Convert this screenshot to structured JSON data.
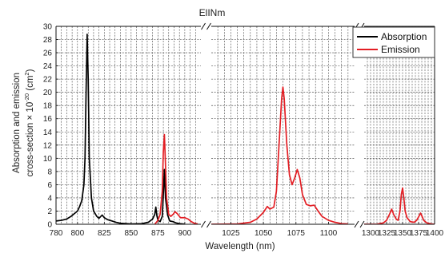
{
  "chart_data": {
    "type": "line",
    "title": "ElINm",
    "xlabel": "Wavelength (nm)",
    "ylabel_line1": "Absorption and emission",
    "ylabel_line2": "cross-section × 10",
    "ylabel_exp": "-20",
    "ylabel_unit_open": " (cm",
    "ylabel_unit_exp": "2",
    "ylabel_unit_close": ")",
    "ylim": [
      0,
      30
    ],
    "yticks": [
      0,
      2,
      4,
      6,
      8,
      10,
      12,
      14,
      16,
      18,
      20,
      22,
      24,
      26,
      28,
      30
    ],
    "grid": true,
    "broken_x_axis": true,
    "legend_position": "top-right",
    "segments": [
      {
        "xlim": [
          780,
          915
        ],
        "ticks": [
          780,
          800,
          825,
          850,
          875,
          900
        ]
      },
      {
        "xlim": [
          1010,
          1120
        ],
        "ticks": [
          1025,
          1050,
          1075,
          1100
        ]
      },
      {
        "xlim": [
          1290,
          1400
        ],
        "ticks": [
          1300,
          1325,
          1350,
          1375,
          1400
        ]
      }
    ],
    "series": [
      {
        "name": "Absorption",
        "color": "#000000",
        "points": [
          [
            780,
            0.5
          ],
          [
            785,
            0.6
          ],
          [
            790,
            0.8
          ],
          [
            794,
            1.2
          ],
          [
            797,
            1.6
          ],
          [
            800,
            2.0
          ],
          [
            802,
            2.7
          ],
          [
            804,
            3.6
          ],
          [
            806,
            6.0
          ],
          [
            807,
            10.0
          ],
          [
            808,
            20.0
          ],
          [
            809,
            28.8
          ],
          [
            810,
            22.0
          ],
          [
            811,
            10.0
          ],
          [
            813,
            4.0
          ],
          [
            815,
            2.0
          ],
          [
            818,
            1.2
          ],
          [
            820,
            0.9
          ],
          [
            823,
            1.4
          ],
          [
            825,
            1.0
          ],
          [
            828,
            0.7
          ],
          [
            832,
            0.5
          ],
          [
            836,
            0.3
          ],
          [
            840,
            0.15
          ],
          [
            850,
            0.05
          ],
          [
            860,
            0.1
          ],
          [
            866,
            0.3
          ],
          [
            870,
            0.8
          ],
          [
            872,
            1.5
          ],
          [
            873,
            2.6
          ],
          [
            874,
            1.3
          ],
          [
            875,
            0.6
          ],
          [
            877,
            0.4
          ],
          [
            879,
            1.2
          ],
          [
            880,
            4.5
          ],
          [
            881,
            8.3
          ],
          [
            882,
            4.0
          ],
          [
            884,
            1.4
          ],
          [
            886,
            0.5
          ],
          [
            889,
            0.4
          ],
          [
            892,
            0.2
          ],
          [
            895,
            0.1
          ],
          [
            900,
            0.02
          ]
        ]
      },
      {
        "name": "Emission",
        "color": "#e31e24",
        "points": [
          [
            872,
            0.0
          ],
          [
            875,
            0.6
          ],
          [
            877,
            1.5
          ],
          [
            879,
            5.0
          ],
          [
            880,
            11.0
          ],
          [
            881,
            13.6
          ],
          [
            882,
            9.0
          ],
          [
            883,
            4.0
          ],
          [
            885,
            1.5
          ],
          [
            887,
            1.2
          ],
          [
            889,
            1.5
          ],
          [
            891,
            1.9
          ],
          [
            893,
            1.6
          ],
          [
            896,
            1.0
          ],
          [
            900,
            1.0
          ],
          [
            903,
            0.8
          ],
          [
            906,
            0.4
          ],
          [
            909,
            0.15
          ],
          [
            912,
            0.05
          ],
          [
            1010,
            0.0
          ],
          [
            1030,
            0.05
          ],
          [
            1040,
            0.3
          ],
          [
            1045,
            0.8
          ],
          [
            1050,
            1.8
          ],
          [
            1053,
            2.7
          ],
          [
            1055,
            2.3
          ],
          [
            1058,
            2.6
          ],
          [
            1060,
            5.0
          ],
          [
            1062,
            12.0
          ],
          [
            1064,
            19.0
          ],
          [
            1065,
            20.8
          ],
          [
            1066,
            19.0
          ],
          [
            1068,
            12.0
          ],
          [
            1070,
            7.5
          ],
          [
            1072,
            6.0
          ],
          [
            1074,
            7.0
          ],
          [
            1076,
            8.3
          ],
          [
            1078,
            7.0
          ],
          [
            1080,
            4.5
          ],
          [
            1083,
            3.0
          ],
          [
            1086,
            2.8
          ],
          [
            1089,
            2.9
          ],
          [
            1092,
            2.0
          ],
          [
            1095,
            1.2
          ],
          [
            1100,
            0.6
          ],
          [
            1105,
            0.3
          ],
          [
            1110,
            0.1
          ],
          [
            1115,
            0.05
          ],
          [
            1290,
            0.0
          ],
          [
            1310,
            0.02
          ],
          [
            1320,
            0.2
          ],
          [
            1325,
            0.6
          ],
          [
            1330,
            1.6
          ],
          [
            1333,
            2.3
          ],
          [
            1336,
            1.5
          ],
          [
            1340,
            0.8
          ],
          [
            1343,
            0.6
          ],
          [
            1346,
            2.0
          ],
          [
            1348,
            4.5
          ],
          [
            1350,
            5.5
          ],
          [
            1352,
            4.0
          ],
          [
            1354,
            2.0
          ],
          [
            1357,
            1.0
          ],
          [
            1362,
            0.4
          ],
          [
            1368,
            0.3
          ],
          [
            1372,
            0.6
          ],
          [
            1376,
            1.3
          ],
          [
            1378,
            1.7
          ],
          [
            1380,
            1.3
          ],
          [
            1383,
            0.6
          ],
          [
            1388,
            0.2
          ],
          [
            1395,
            0.05
          ],
          [
            1400,
            0.0
          ]
        ]
      }
    ]
  }
}
